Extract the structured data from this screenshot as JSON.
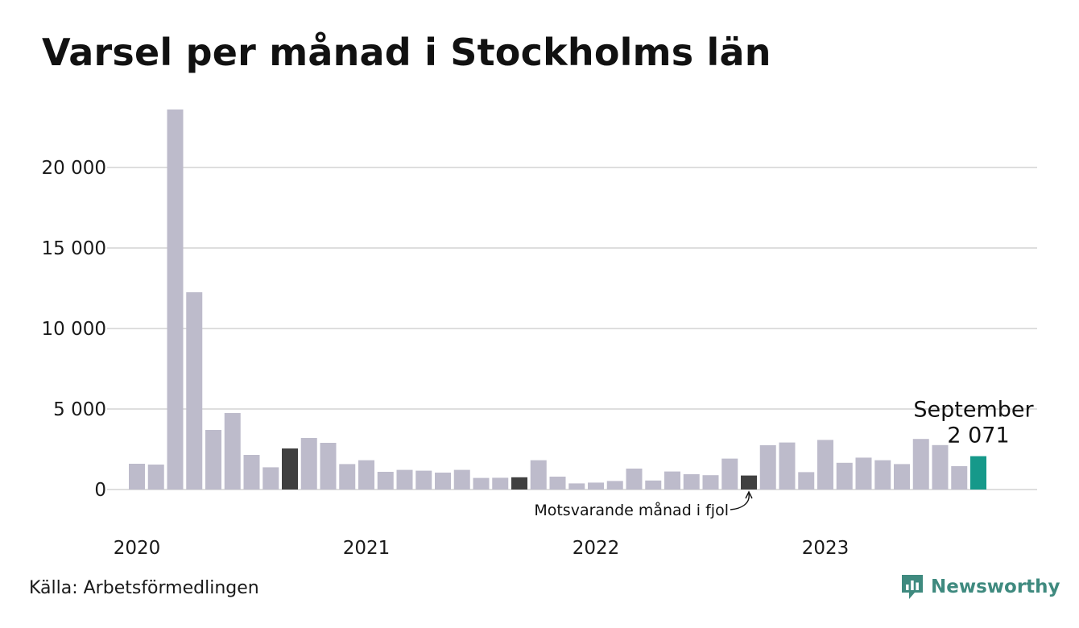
{
  "title": "Varsel per månad i Stockholms län",
  "source": "Källa: Arbetsförmedlingen",
  "brand": {
    "name": "Newsworthy",
    "icon": "newsworthy-logo-icon"
  },
  "colors": {
    "default_bar": "#bdbbcb",
    "comparison_bar": "#404040",
    "highlight_bar": "#16998a",
    "grid": "#dedede",
    "brand": "#3f8a7f"
  },
  "chart_data": {
    "type": "bar",
    "title": "Varsel per månad i Stockholms län",
    "xlabel": "",
    "ylabel": "",
    "ylim": [
      0,
      24000
    ],
    "yticks": [
      0,
      5000,
      10000,
      15000,
      20000
    ],
    "ytick_labels": [
      "0",
      "5 000",
      "10 000",
      "15 000",
      "20 000"
    ],
    "xtick_labels": [
      {
        "label": "2020",
        "index": 0
      },
      {
        "label": "2021",
        "index": 12
      },
      {
        "label": "2022",
        "index": 24
      },
      {
        "label": "2023",
        "index": 36
      }
    ],
    "grid": true,
    "legend": "none",
    "categories": [
      "2020-01",
      "2020-02",
      "2020-03",
      "2020-04",
      "2020-05",
      "2020-06",
      "2020-07",
      "2020-08",
      "2020-09",
      "2020-10",
      "2020-11",
      "2020-12",
      "2021-01",
      "2021-02",
      "2021-03",
      "2021-04",
      "2021-05",
      "2021-06",
      "2021-07",
      "2021-08",
      "2021-09",
      "2021-10",
      "2021-11",
      "2021-12",
      "2022-01",
      "2022-02",
      "2022-03",
      "2022-04",
      "2022-05",
      "2022-06",
      "2022-07",
      "2022-08",
      "2022-09",
      "2022-10",
      "2022-11",
      "2022-12",
      "2023-01",
      "2023-02",
      "2023-03",
      "2023-04",
      "2023-05",
      "2023-06",
      "2023-07",
      "2023-08",
      "2023-09"
    ],
    "values": [
      1600,
      1550,
      23600,
      12250,
      3700,
      4750,
      2150,
      1380,
      2550,
      3200,
      2900,
      1580,
      1820,
      1100,
      1220,
      1170,
      1050,
      1220,
      720,
      730,
      760,
      1820,
      800,
      380,
      430,
      530,
      1300,
      560,
      1120,
      950,
      890,
      1920,
      870,
      2750,
      2920,
      1080,
      3080,
      1660,
      1980,
      1820,
      1580,
      3140,
      2760,
      1450,
      2071
    ],
    "bar_roles": [
      "default",
      "default",
      "default",
      "default",
      "default",
      "default",
      "default",
      "default",
      "comparison",
      "default",
      "default",
      "default",
      "default",
      "default",
      "default",
      "default",
      "default",
      "default",
      "default",
      "default",
      "comparison",
      "default",
      "default",
      "default",
      "default",
      "default",
      "default",
      "default",
      "default",
      "default",
      "default",
      "default",
      "comparison",
      "default",
      "default",
      "default",
      "default",
      "default",
      "default",
      "default",
      "default",
      "default",
      "default",
      "default",
      "highlight"
    ],
    "annotations": {
      "highlight": {
        "index": 44,
        "label": "September",
        "value_label": "2 071"
      },
      "comparison": {
        "index": 32,
        "label": "Motsvarande månad i fjol"
      }
    }
  }
}
